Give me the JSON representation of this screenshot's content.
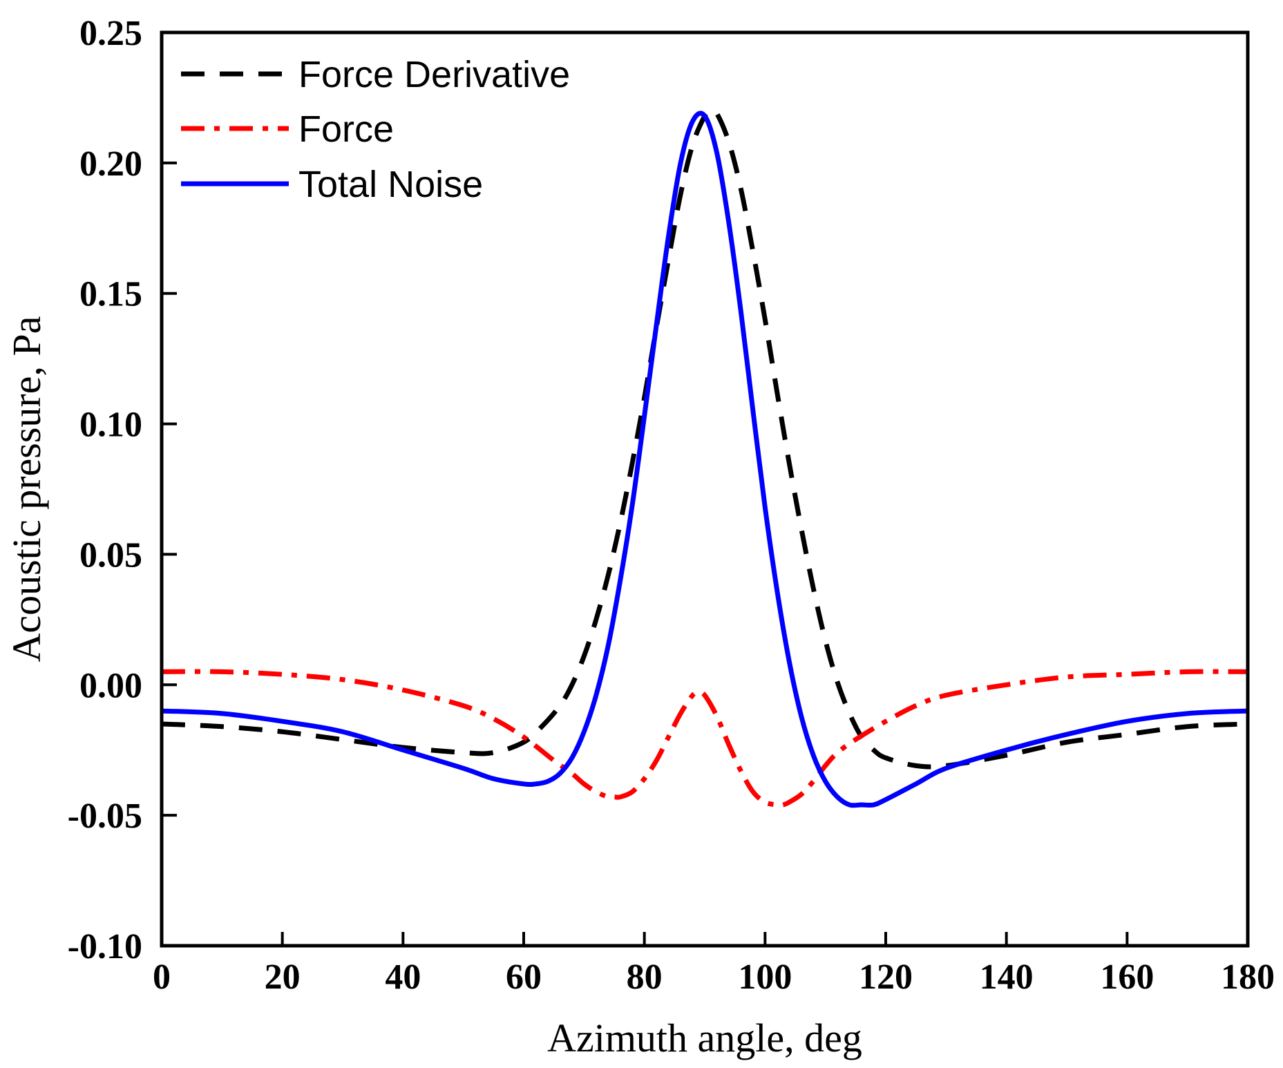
{
  "chart_data": {
    "type": "line",
    "title": "",
    "xlabel": "Azimuth angle, deg",
    "ylabel": "Acoustic pressure, Pa",
    "xlim": [
      0,
      180
    ],
    "ylim": [
      -0.1,
      0.25
    ],
    "xticks": [
      0,
      20,
      40,
      60,
      80,
      100,
      120,
      140,
      160,
      180
    ],
    "xtick_labels": [
      "0",
      "20",
      "40",
      "60",
      "80",
      "100",
      "120",
      "140",
      "160",
      "180"
    ],
    "yticks": [
      -0.1,
      -0.05,
      0.0,
      0.05,
      0.1,
      0.15,
      0.2,
      0.25
    ],
    "ytick_labels": [
      "-0.10",
      "-0.05",
      "0.00",
      "0.05",
      "0.10",
      "0.15",
      "0.20",
      "0.25"
    ],
    "grid": false,
    "legend_position": "top-left",
    "series": [
      {
        "name": "Force Derivative",
        "color": "#000000",
        "style": "dashed",
        "x": [
          0,
          10,
          20,
          30,
          40,
          50,
          55,
          60,
          63,
          66,
          68,
          70,
          72,
          74,
          76,
          78,
          80,
          82,
          84,
          86,
          88,
          90,
          91,
          92,
          94,
          96,
          98,
          100,
          102,
          104,
          106,
          108,
          110,
          112,
          114,
          116,
          118,
          120,
          125,
          130,
          140,
          150,
          160,
          170,
          180
        ],
        "values": [
          -0.015,
          -0.016,
          -0.018,
          -0.021,
          -0.024,
          -0.026,
          -0.026,
          -0.022,
          -0.016,
          -0.008,
          0.0,
          0.011,
          0.025,
          0.042,
          0.062,
          0.085,
          0.11,
          0.137,
          0.163,
          0.188,
          0.207,
          0.218,
          0.22,
          0.219,
          0.208,
          0.19,
          0.166,
          0.14,
          0.112,
          0.085,
          0.06,
          0.037,
          0.017,
          0.001,
          -0.011,
          -0.02,
          -0.025,
          -0.028,
          -0.031,
          -0.031,
          -0.027,
          -0.022,
          -0.019,
          -0.016,
          -0.015
        ]
      },
      {
        "name": "Force",
        "color": "#ff0000",
        "style": "dash-dot",
        "x": [
          0,
          10,
          20,
          30,
          40,
          50,
          55,
          60,
          65,
          68,
          70,
          72,
          74,
          75,
          76,
          78,
          80,
          82,
          84,
          86,
          88,
          89,
          90,
          92,
          94,
          96,
          98,
          100,
          102,
          103,
          104,
          106,
          108,
          110,
          112,
          115,
          120,
          125,
          130,
          140,
          150,
          160,
          170,
          180
        ],
        "values": [
          0.005,
          0.005,
          0.004,
          0.002,
          -0.002,
          -0.008,
          -0.013,
          -0.02,
          -0.029,
          -0.034,
          -0.038,
          -0.041,
          -0.043,
          -0.043,
          -0.043,
          -0.041,
          -0.036,
          -0.029,
          -0.02,
          -0.011,
          -0.004,
          -0.003,
          -0.004,
          -0.012,
          -0.023,
          -0.033,
          -0.041,
          -0.045,
          -0.046,
          -0.046,
          -0.045,
          -0.042,
          -0.037,
          -0.031,
          -0.026,
          -0.021,
          -0.014,
          -0.008,
          -0.004,
          0.0,
          0.003,
          0.004,
          0.005,
          0.005
        ]
      },
      {
        "name": "Total Noise",
        "color": "#0000ff",
        "style": "solid",
        "x": [
          0,
          10,
          20,
          30,
          40,
          50,
          55,
          60,
          62,
          64,
          66,
          68,
          70,
          72,
          74,
          76,
          78,
          80,
          82,
          84,
          86,
          88,
          90,
          92,
          94,
          96,
          98,
          100,
          102,
          104,
          106,
          108,
          110,
          112,
          114,
          116,
          118,
          120,
          125,
          130,
          140,
          150,
          160,
          170,
          180
        ],
        "values": [
          -0.01,
          -0.011,
          -0.014,
          -0.018,
          -0.025,
          -0.032,
          -0.036,
          -0.038,
          -0.038,
          -0.037,
          -0.034,
          -0.028,
          -0.018,
          -0.004,
          0.015,
          0.04,
          0.069,
          0.103,
          0.138,
          0.172,
          0.2,
          0.216,
          0.218,
          0.204,
          0.177,
          0.143,
          0.105,
          0.068,
          0.036,
          0.009,
          -0.012,
          -0.027,
          -0.037,
          -0.043,
          -0.046,
          -0.046,
          -0.046,
          -0.044,
          -0.038,
          -0.032,
          -0.025,
          -0.019,
          -0.014,
          -0.011,
          -0.01
        ]
      }
    ]
  }
}
